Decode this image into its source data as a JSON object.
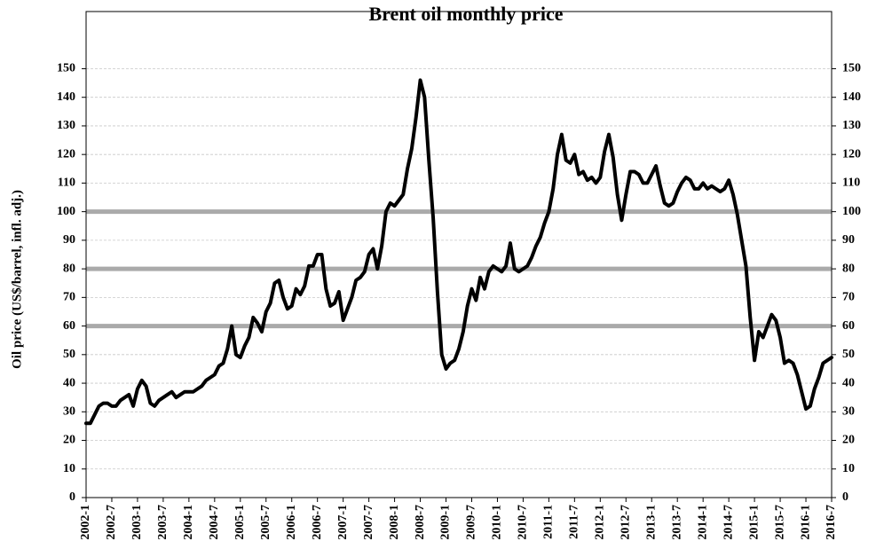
{
  "chart_data": {
    "type": "line",
    "title": "Brent oil monthly price",
    "y_label": "Oil price (US$/barrel, infl. adj.)",
    "categories": [
      "2002-1",
      null,
      null,
      null,
      null,
      null,
      "2002-7",
      null,
      null,
      null,
      null,
      null,
      "2003-1",
      null,
      null,
      null,
      null,
      null,
      "2003-7",
      null,
      null,
      null,
      null,
      null,
      "2004-1",
      null,
      null,
      null,
      null,
      null,
      "2004-7",
      null,
      null,
      null,
      null,
      null,
      "2005-1",
      null,
      null,
      null,
      null,
      null,
      "2005-7",
      null,
      null,
      null,
      null,
      null,
      "2006-1",
      null,
      null,
      null,
      null,
      null,
      "2006-7",
      null,
      null,
      null,
      null,
      null,
      "2007-1",
      null,
      null,
      null,
      null,
      null,
      "2007-7",
      null,
      null,
      null,
      null,
      null,
      "2008-1",
      null,
      null,
      null,
      null,
      null,
      "2008-7",
      null,
      null,
      null,
      null,
      null,
      "2009-1",
      null,
      null,
      null,
      null,
      null,
      "2009-7",
      null,
      null,
      null,
      null,
      null,
      "2010-1",
      null,
      null,
      null,
      null,
      null,
      "2010-7",
      null,
      null,
      null,
      null,
      null,
      "2011-1",
      null,
      null,
      null,
      null,
      null,
      "2011-7",
      null,
      null,
      null,
      null,
      null,
      "2012-1",
      null,
      null,
      null,
      null,
      null,
      "2012-7",
      null,
      null,
      null,
      null,
      null,
      "2013-1",
      null,
      null,
      null,
      null,
      null,
      "2013-7",
      null,
      null,
      null,
      null,
      null,
      "2014-1",
      null,
      null,
      null,
      null,
      null,
      "2014-7",
      null,
      null,
      null,
      null,
      null,
      "2015-1",
      null,
      null,
      null,
      null,
      null,
      "2015-7",
      null,
      null,
      null,
      null,
      null,
      "2016-1",
      null,
      null,
      null,
      null,
      null,
      "2016-7"
    ],
    "series": [
      {
        "name": "Brent",
        "color": "#000000",
        "values": [
          26,
          26,
          29,
          32,
          33,
          33,
          32,
          32,
          34,
          35,
          36,
          32,
          38,
          41,
          39,
          33,
          32,
          34,
          35,
          36,
          37,
          35,
          36,
          37,
          37,
          37,
          38,
          39,
          41,
          42,
          43,
          46,
          47,
          52,
          60,
          50,
          49,
          53,
          56,
          63,
          61,
          58,
          65,
          68,
          75,
          76,
          70,
          66,
          67,
          73,
          71,
          74,
          81,
          81,
          85,
          85,
          73,
          67,
          68,
          72,
          62,
          66,
          70,
          76,
          77,
          79,
          85,
          87,
          80,
          88,
          100,
          103,
          102,
          104,
          106,
          115,
          122,
          133,
          146,
          140,
          118,
          98,
          72,
          50,
          45,
          47,
          48,
          52,
          58,
          67,
          73,
          69,
          77,
          73,
          79,
          81,
          80,
          79,
          81,
          89,
          80,
          79,
          80,
          81,
          84,
          88,
          91,
          96,
          100,
          108,
          120,
          127,
          118,
          117,
          120,
          113,
          114,
          111,
          112,
          110,
          112,
          121,
          127,
          119,
          106,
          97,
          106,
          114,
          114,
          113,
          110,
          110,
          113,
          116,
          109,
          103,
          102,
          103,
          107,
          110,
          112,
          111,
          108,
          108,
          110,
          108,
          109,
          108,
          107,
          108,
          111,
          106,
          99,
          90,
          81,
          63,
          48,
          58,
          56,
          60,
          64,
          62,
          56,
          47,
          48,
          47,
          43,
          37,
          31,
          32,
          38,
          42,
          47,
          48,
          49
        ]
      }
    ],
    "ylim": [
      0,
      170
    ],
    "yticks": [
      0,
      10,
      20,
      30,
      40,
      50,
      60,
      70,
      80,
      90,
      100,
      110,
      120,
      130,
      140,
      150
    ],
    "y2lim": [
      0,
      170
    ],
    "y2ticks": [
      0,
      10,
      20,
      30,
      40,
      50,
      60,
      70,
      80,
      90,
      100,
      110,
      120,
      130,
      140,
      150
    ],
    "reference_lines": [
      60,
      80,
      100
    ],
    "reference_color": "#aaaaaa",
    "grid": true
  }
}
